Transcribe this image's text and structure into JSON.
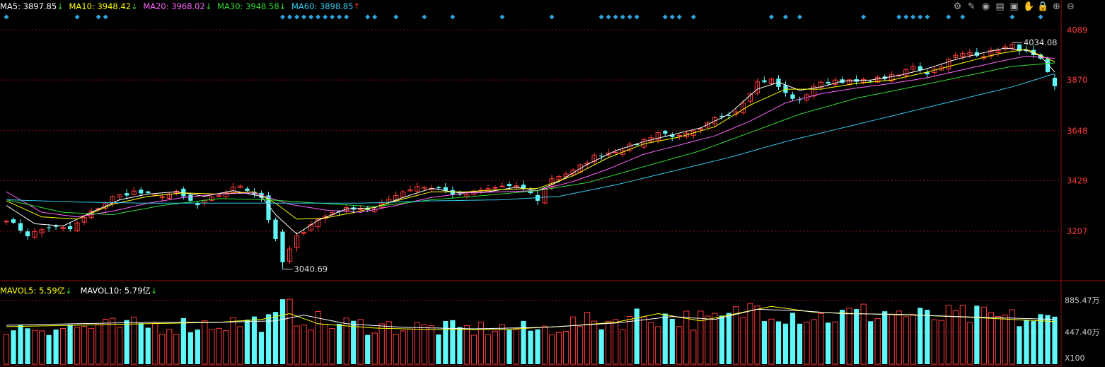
{
  "header": {
    "ma5": {
      "label": "MA5: 3897.85",
      "color": "#ffffff"
    },
    "ma10": {
      "label": "MA10: 3948.42",
      "color": "#ffff00"
    },
    "ma20": {
      "label": "MA20: 3968.02",
      "color": "#ff66ff"
    },
    "ma30": {
      "label": "MA30: 3948.58",
      "color": "#33dd33"
    },
    "ma60": {
      "label": "MA60: 3898.85",
      "color": "#33ccee"
    },
    "arrow_down": "↓",
    "arrow_up": "↑"
  },
  "volume_header": {
    "mavol5": {
      "label": "MAVOL5: 5.59亿",
      "color": "#ffff00"
    },
    "mavol10": {
      "label": "MAVOL10: 5.79亿",
      "color": "#ffffff"
    },
    "arrow_down": "↓"
  },
  "toolbar": {
    "icons": [
      "gear-icon",
      "pen-icon",
      "eye-icon",
      "chart-type-icon",
      "folder-icon",
      "hand-icon",
      "lock-icon",
      "zoom-in-icon",
      "zoom-out-icon"
    ],
    "glyphs": [
      "⚙",
      "✎",
      "◉",
      "▤",
      "▣",
      "✋",
      "🔒",
      "⊕",
      "⊖"
    ]
  },
  "colors": {
    "up": "#ff3b3b",
    "down": "#5ff7f7",
    "grid": "#8a0f0f",
    "axis_text": "#ff3b3b",
    "marker": "#2fa5e0",
    "ma60": "#33ccee",
    "mavol5": "#ffff00",
    "mavol10": "#ffffff"
  },
  "chart_data": {
    "type": "candlestick",
    "price_axis": {
      "ticks": [
        3207,
        3429,
        3648,
        3870,
        4089
      ],
      "range": [
        2990,
        4165
      ]
    },
    "volume_axis": {
      "ticks": [
        "885.47万",
        "447.40万"
      ],
      "tick_values": [
        885.47,
        447.4
      ],
      "range": [
        0,
        950
      ],
      "unit": "X100"
    },
    "annotations": {
      "high": {
        "label": "4034.08",
        "value": 4034.08,
        "bar": 142
      },
      "low": {
        "label": "3040.69",
        "value": 3040.69,
        "bar": 39
      }
    },
    "candle_count": 149,
    "close_path": [
      [
        0,
        3260
      ],
      [
        3,
        3190
      ],
      [
        6,
        3225
      ],
      [
        9,
        3215
      ],
      [
        12,
        3290
      ],
      [
        15,
        3355
      ],
      [
        18,
        3380
      ],
      [
        21,
        3360
      ],
      [
        24,
        3375
      ],
      [
        27,
        3320
      ],
      [
        30,
        3365
      ],
      [
        33,
        3408
      ],
      [
        36,
        3355
      ],
      [
        39,
        3070
      ],
      [
        41,
        3180
      ],
      [
        43,
        3240
      ],
      [
        46,
        3290
      ],
      [
        49,
        3310
      ],
      [
        52,
        3300
      ],
      [
        55,
        3370
      ],
      [
        58,
        3405
      ],
      [
        61,
        3395
      ],
      [
        64,
        3360
      ],
      [
        67,
        3385
      ],
      [
        70,
        3405
      ],
      [
        73,
        3395
      ],
      [
        75,
        3345
      ],
      [
        77,
        3440
      ],
      [
        80,
        3470
      ],
      [
        83,
        3535
      ],
      [
        86,
        3560
      ],
      [
        89,
        3590
      ],
      [
        92,
        3640
      ],
      [
        95,
        3620
      ],
      [
        98,
        3650
      ],
      [
        100,
        3700
      ],
      [
        103,
        3735
      ],
      [
        106,
        3860
      ],
      [
        108,
        3870
      ],
      [
        110,
        3810
      ],
      [
        112,
        3775
      ],
      [
        114,
        3845
      ],
      [
        117,
        3870
      ],
      [
        120,
        3860
      ],
      [
        123,
        3875
      ],
      [
        126,
        3890
      ],
      [
        128,
        3935
      ],
      [
        130,
        3900
      ],
      [
        132,
        3935
      ],
      [
        134,
        3975
      ],
      [
        136,
        3990
      ],
      [
        138,
        3980
      ],
      [
        140,
        4005
      ],
      [
        142,
        4020
      ],
      [
        144,
        3990
      ],
      [
        146,
        3955
      ],
      [
        148,
        3838
      ]
    ],
    "ma_paths": {
      "ma5": [
        [
          0,
          3320
        ],
        [
          4,
          3240
        ],
        [
          8,
          3230
        ],
        [
          12,
          3290
        ],
        [
          16,
          3345
        ],
        [
          20,
          3370
        ],
        [
          24,
          3380
        ],
        [
          28,
          3360
        ],
        [
          32,
          3385
        ],
        [
          36,
          3360
        ],
        [
          38,
          3280
        ],
        [
          41,
          3195
        ],
        [
          44,
          3255
        ],
        [
          48,
          3305
        ],
        [
          52,
          3310
        ],
        [
          56,
          3355
        ],
        [
          60,
          3395
        ],
        [
          64,
          3375
        ],
        [
          68,
          3380
        ],
        [
          72,
          3400
        ],
        [
          75,
          3385
        ],
        [
          78,
          3425
        ],
        [
          82,
          3500
        ],
        [
          86,
          3560
        ],
        [
          90,
          3600
        ],
        [
          94,
          3630
        ],
        [
          98,
          3660
        ],
        [
          102,
          3720
        ],
        [
          106,
          3830
        ],
        [
          109,
          3860
        ],
        [
          112,
          3825
        ],
        [
          115,
          3840
        ],
        [
          118,
          3865
        ],
        [
          122,
          3870
        ],
        [
          126,
          3890
        ],
        [
          130,
          3920
        ],
        [
          134,
          3960
        ],
        [
          138,
          3990
        ],
        [
          141,
          4010
        ],
        [
          144,
          4000
        ],
        [
          146,
          3975
        ],
        [
          148,
          3905
        ]
      ],
      "ma10": [
        [
          0,
          3340
        ],
        [
          5,
          3270
        ],
        [
          10,
          3260
        ],
        [
          15,
          3325
        ],
        [
          20,
          3360
        ],
        [
          25,
          3375
        ],
        [
          30,
          3370
        ],
        [
          35,
          3380
        ],
        [
          38,
          3330
        ],
        [
          41,
          3260
        ],
        [
          45,
          3265
        ],
        [
          50,
          3295
        ],
        [
          55,
          3340
        ],
        [
          60,
          3380
        ],
        [
          65,
          3380
        ],
        [
          70,
          3390
        ],
        [
          75,
          3395
        ],
        [
          80,
          3450
        ],
        [
          85,
          3530
        ],
        [
          90,
          3590
        ],
        [
          95,
          3620
        ],
        [
          100,
          3665
        ],
        [
          105,
          3760
        ],
        [
          110,
          3830
        ],
        [
          115,
          3830
        ],
        [
          120,
          3855
        ],
        [
          125,
          3870
        ],
        [
          130,
          3905
        ],
        [
          135,
          3945
        ],
        [
          140,
          3985
        ],
        [
          144,
          4005
        ],
        [
          148,
          3950
        ]
      ],
      "ma20": [
        [
          0,
          3380
        ],
        [
          5,
          3290
        ],
        [
          10,
          3270
        ],
        [
          15,
          3295
        ],
        [
          20,
          3330
        ],
        [
          25,
          3355
        ],
        [
          30,
          3370
        ],
        [
          35,
          3375
        ],
        [
          40,
          3325
        ],
        [
          45,
          3300
        ],
        [
          50,
          3290
        ],
        [
          55,
          3320
        ],
        [
          60,
          3355
        ],
        [
          65,
          3375
        ],
        [
          70,
          3380
        ],
        [
          75,
          3385
        ],
        [
          80,
          3425
        ],
        [
          85,
          3480
        ],
        [
          90,
          3545
        ],
        [
          95,
          3585
        ],
        [
          100,
          3625
        ],
        [
          105,
          3690
        ],
        [
          110,
          3770
        ],
        [
          115,
          3810
        ],
        [
          120,
          3835
        ],
        [
          125,
          3855
        ],
        [
          130,
          3880
        ],
        [
          135,
          3915
        ],
        [
          140,
          3950
        ],
        [
          144,
          3975
        ],
        [
          148,
          3965
        ]
      ],
      "ma30": [
        [
          0,
          3345
        ],
        [
          8,
          3290
        ],
        [
          15,
          3280
        ],
        [
          22,
          3320
        ],
        [
          30,
          3350
        ],
        [
          37,
          3345
        ],
        [
          44,
          3330
        ],
        [
          52,
          3315
        ],
        [
          60,
          3345
        ],
        [
          68,
          3365
        ],
        [
          75,
          3385
        ],
        [
          82,
          3420
        ],
        [
          90,
          3490
        ],
        [
          98,
          3560
        ],
        [
          105,
          3640
        ],
        [
          112,
          3720
        ],
        [
          120,
          3790
        ],
        [
          128,
          3840
        ],
        [
          135,
          3885
        ],
        [
          142,
          3930
        ],
        [
          148,
          3945
        ]
      ],
      "ma60": [
        [
          0,
          3345
        ],
        [
          10,
          3335
        ],
        [
          20,
          3330
        ],
        [
          30,
          3330
        ],
        [
          40,
          3330
        ],
        [
          50,
          3330
        ],
        [
          60,
          3340
        ],
        [
          70,
          3345
        ],
        [
          78,
          3360
        ],
        [
          86,
          3410
        ],
        [
          94,
          3470
        ],
        [
          102,
          3530
        ],
        [
          110,
          3600
        ],
        [
          118,
          3660
        ],
        [
          126,
          3720
        ],
        [
          134,
          3780
        ],
        [
          142,
          3840
        ],
        [
          148,
          3898
        ]
      ]
    },
    "volume_profile": [
      [
        0,
        520
      ],
      [
        10,
        510
      ],
      [
        20,
        530
      ],
      [
        30,
        560
      ],
      [
        38,
        600
      ],
      [
        40,
        700
      ],
      [
        45,
        560
      ],
      [
        55,
        520
      ],
      [
        65,
        480
      ],
      [
        70,
        500
      ],
      [
        75,
        470
      ],
      [
        80,
        560
      ],
      [
        85,
        600
      ],
      [
        90,
        680
      ],
      [
        95,
        640
      ],
      [
        100,
        590
      ],
      [
        103,
        680
      ],
      [
        106,
        820
      ],
      [
        110,
        720
      ],
      [
        115,
        650
      ],
      [
        120,
        700
      ],
      [
        125,
        720
      ],
      [
        130,
        640
      ],
      [
        135,
        670
      ],
      [
        140,
        640
      ],
      [
        148,
        600
      ]
    ],
    "mavol5_path": [
      [
        0,
        520
      ],
      [
        10,
        540
      ],
      [
        20,
        560
      ],
      [
        30,
        580
      ],
      [
        36,
        620
      ],
      [
        40,
        700
      ],
      [
        44,
        560
      ],
      [
        52,
        500
      ],
      [
        60,
        480
      ],
      [
        70,
        480
      ],
      [
        78,
        520
      ],
      [
        86,
        580
      ],
      [
        92,
        700
      ],
      [
        98,
        600
      ],
      [
        104,
        720
      ],
      [
        108,
        800
      ],
      [
        114,
        720
      ],
      [
        120,
        700
      ],
      [
        128,
        680
      ],
      [
        136,
        650
      ],
      [
        148,
        590
      ]
    ],
    "mavol10_path": [
      [
        0,
        540
      ],
      [
        10,
        560
      ],
      [
        20,
        580
      ],
      [
        30,
        580
      ],
      [
        38,
        600
      ],
      [
        42,
        680
      ],
      [
        48,
        560
      ],
      [
        56,
        510
      ],
      [
        66,
        490
      ],
      [
        76,
        510
      ],
      [
        86,
        570
      ],
      [
        94,
        660
      ],
      [
        100,
        620
      ],
      [
        106,
        760
      ],
      [
        112,
        740
      ],
      [
        118,
        700
      ],
      [
        126,
        690
      ],
      [
        134,
        660
      ],
      [
        148,
        620
      ]
    ],
    "signal_markers": [
      0,
      10,
      13,
      14,
      39,
      40,
      41,
      42,
      43,
      44,
      45,
      46,
      47,
      48,
      51,
      52,
      55,
      59,
      63,
      70,
      77,
      84,
      85,
      86,
      87,
      88,
      89,
      93,
      94,
      95,
      97,
      108,
      110,
      112,
      121,
      126,
      127,
      128,
      129,
      130,
      133,
      135,
      142,
      146
    ]
  }
}
